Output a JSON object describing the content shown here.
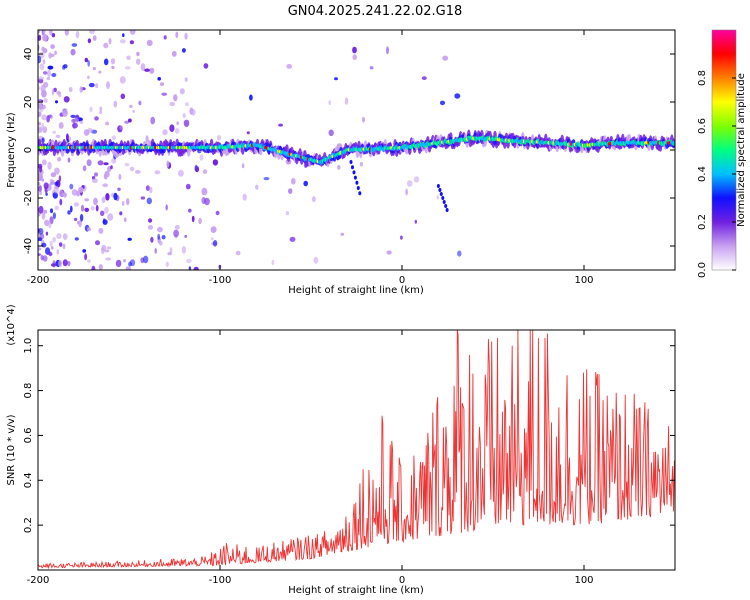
{
  "title": "GN04.2025.241.22.02.G18",
  "chart_data": [
    {
      "type": "heatmap",
      "xlabel": "Height of straight line (km)",
      "ylabel": "Frequency (Hz)",
      "xlim": [
        -200,
        150
      ],
      "ylim": [
        -50,
        50
      ],
      "x_ticks": [
        -200,
        -100,
        0,
        100
      ],
      "y_ticks": [
        -40,
        -20,
        0,
        20,
        40
      ],
      "colorbar": {
        "label": "Normalized spectral amplitude",
        "range": [
          0,
          1
        ],
        "ticks": [
          "0.0",
          "0.2",
          "0.4",
          "0.6",
          "0.8"
        ],
        "colormap": [
          "#ffffff",
          "#c8a0f0",
          "#7020e0",
          "#1010ff",
          "#00c0ff",
          "#00ff80",
          "#80ff00",
          "#ffff00",
          "#ff8000",
          "#ff0000",
          "#ff00a0"
        ]
      },
      "ridge": [
        {
          "x": -200,
          "freq": 1
        },
        {
          "x": -150,
          "freq": 1
        },
        {
          "x": -100,
          "freq": 1
        },
        {
          "x": -80,
          "freq": 2
        },
        {
          "x": -60,
          "freq": -2
        },
        {
          "x": -45,
          "freq": -5
        },
        {
          "x": -30,
          "freq": 0
        },
        {
          "x": 0,
          "freq": 1
        },
        {
          "x": 20,
          "freq": 3
        },
        {
          "x": 40,
          "freq": 5
        },
        {
          "x": 60,
          "freq": 4
        },
        {
          "x": 80,
          "freq": 3
        },
        {
          "x": 100,
          "freq": 2
        },
        {
          "x": 120,
          "freq": 3
        },
        {
          "x": 150,
          "freq": 3
        }
      ]
    },
    {
      "type": "line",
      "xlabel": "Height of straight line (km)",
      "ylabel": "SNR (10 * v/v)",
      "y_multiplier": "(x10^4)",
      "xlim": [
        -200,
        150
      ],
      "ylim": [
        0,
        1.07
      ],
      "x_ticks": [
        -200,
        -100,
        0,
        100
      ],
      "y_ticks": [
        0.2,
        0.4,
        0.6,
        0.8,
        1.0
      ],
      "color": "#ee3333",
      "envelope": [
        {
          "x": -200,
          "y": 0.03
        },
        {
          "x": -150,
          "y": 0.04
        },
        {
          "x": -110,
          "y": 0.06
        },
        {
          "x": -95,
          "y": 0.12
        },
        {
          "x": -80,
          "y": 0.1
        },
        {
          "x": -60,
          "y": 0.14
        },
        {
          "x": -40,
          "y": 0.17
        },
        {
          "x": -30,
          "y": 0.3
        },
        {
          "x": -20,
          "y": 0.5
        },
        {
          "x": -10,
          "y": 0.65
        },
        {
          "x": 0,
          "y": 0.45
        },
        {
          "x": 10,
          "y": 0.55
        },
        {
          "x": 20,
          "y": 0.8
        },
        {
          "x": 30,
          "y": 1.07
        },
        {
          "x": 50,
          "y": 0.95
        },
        {
          "x": 75,
          "y": 1.07
        },
        {
          "x": 100,
          "y": 0.85
        },
        {
          "x": 125,
          "y": 0.75
        },
        {
          "x": 150,
          "y": 0.6
        }
      ],
      "baseline": [
        {
          "x": -200,
          "y": 0.01
        },
        {
          "x": -100,
          "y": 0.02
        },
        {
          "x": -50,
          "y": 0.05
        },
        {
          "x": -20,
          "y": 0.1
        },
        {
          "x": 20,
          "y": 0.15
        },
        {
          "x": 60,
          "y": 0.2
        },
        {
          "x": 100,
          "y": 0.2
        },
        {
          "x": 150,
          "y": 0.25
        }
      ]
    }
  ]
}
